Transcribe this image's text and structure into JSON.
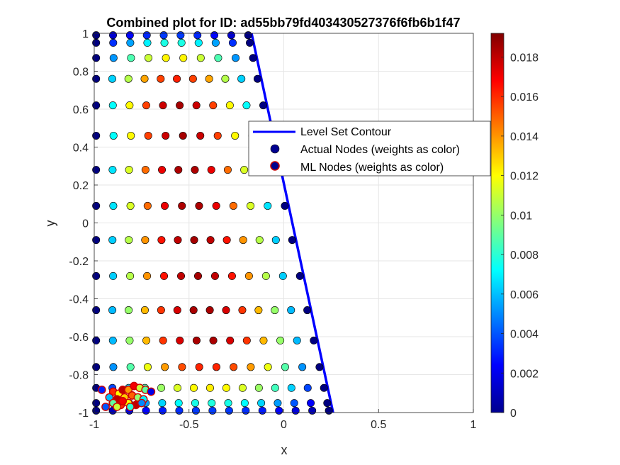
{
  "chart_data": {
    "type": "scatter",
    "title": "Combined plot for ID: ad55bb79fd403430527376f6fb6b1f47",
    "xlabel": "x",
    "ylabel": "y",
    "xlim": [
      -1,
      1
    ],
    "ylim": [
      -1,
      1
    ],
    "grid": true,
    "x_ticks": [
      "-1",
      "-0.5",
      "0",
      "0.5",
      "1"
    ],
    "y_ticks": [
      "-1",
      "-0.8",
      "-0.6",
      "-0.4",
      "-0.2",
      "0",
      "0.2",
      "0.4",
      "0.6",
      "0.8",
      "1"
    ],
    "colorbar": {
      "colormap": "jet",
      "range": [
        0,
        0.0192
      ],
      "ticks": [
        "0",
        "0.002",
        "0.004",
        "0.006",
        "0.008",
        "0.01",
        "0.012",
        "0.014",
        "0.016",
        "0.018"
      ]
    },
    "legend": {
      "location": "top-right",
      "entries": [
        "Level Set Contour",
        "Actual Nodes (weights as color)",
        "ML Nodes (weights as color)"
      ]
    },
    "level_set_contour": {
      "color": "#0000ff",
      "points": [
        [
          -0.17,
          1.0
        ],
        [
          0.26,
          -1.0
        ]
      ]
    },
    "actual_nodes": {
      "x_start": -0.99,
      "y_rows": [
        0.99,
        0.95,
        0.87,
        0.76,
        0.62,
        0.46,
        0.28,
        0.09,
        -0.09,
        -0.28,
        -0.46,
        -0.62,
        -0.76,
        -0.87,
        -0.95,
        -0.99
      ],
      "weight_peak": 0.0185
    },
    "ml_nodes": {
      "edge_color": "#cc0000",
      "points": [
        [
          -0.9,
          -0.89,
          0.016
        ],
        [
          -0.87,
          -0.9,
          0.012
        ],
        [
          -0.85,
          -0.88,
          0.018
        ],
        [
          -0.82,
          -0.88,
          0.014
        ],
        [
          -0.79,
          -0.86,
          0.017
        ],
        [
          -0.76,
          -0.87,
          0.011
        ],
        [
          -0.73,
          -0.88,
          0.009
        ],
        [
          -0.92,
          -0.92,
          0.006
        ],
        [
          -0.88,
          -0.93,
          0.018
        ],
        [
          -0.84,
          -0.92,
          0.013
        ],
        [
          -0.8,
          -0.91,
          0.015
        ],
        [
          -0.77,
          -0.92,
          0.01
        ],
        [
          -0.74,
          -0.93,
          0.007
        ],
        [
          -0.9,
          -0.95,
          0.009
        ],
        [
          -0.86,
          -0.96,
          0.016
        ],
        [
          -0.82,
          -0.95,
          0.012
        ],
        [
          -0.78,
          -0.96,
          0.018
        ],
        [
          -0.75,
          -0.95,
          0.005
        ],
        [
          -0.94,
          -0.97,
          0.004
        ],
        [
          -0.88,
          -0.97,
          0.011
        ],
        [
          -0.81,
          -0.97,
          0.008
        ],
        [
          -0.96,
          -0.88,
          0.003
        ],
        [
          -0.7,
          -0.89,
          0.002
        ],
        [
          -0.85,
          -0.94,
          0.017
        ]
      ]
    }
  }
}
